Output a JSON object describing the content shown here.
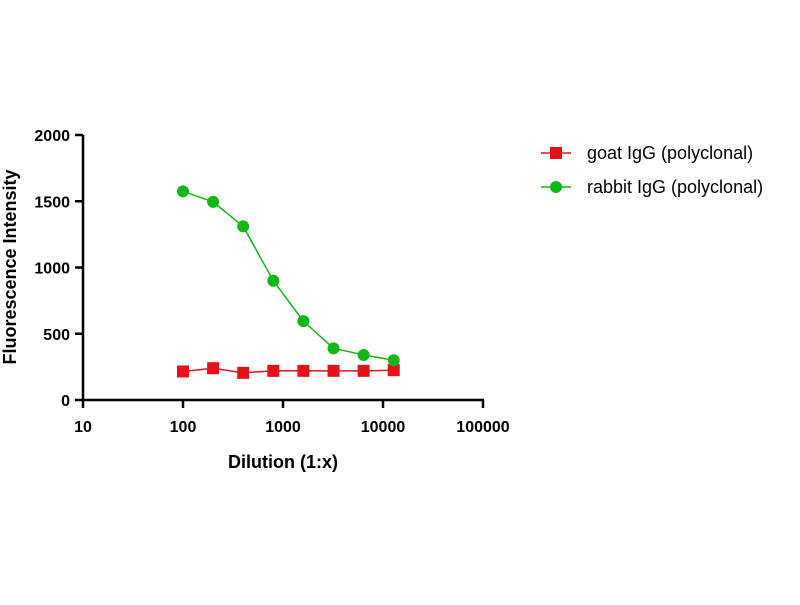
{
  "chart_data": {
    "type": "line",
    "title": "",
    "xlabel": "Dilution (1:x)",
    "ylabel": "Fluorescence Intensity",
    "xscale": "log",
    "xlim": [
      10,
      100000
    ],
    "ylim": [
      0,
      2000
    ],
    "xticks": [
      10,
      100,
      1000,
      10000,
      100000
    ],
    "xtick_labels": [
      "10",
      "100",
      "1000",
      "10000",
      "100000"
    ],
    "yticks": [
      0,
      500,
      1000,
      1500,
      2000
    ],
    "ytick_labels": [
      "0",
      "500",
      "1000",
      "1500",
      "2000"
    ],
    "grid": false,
    "legend_position": "right",
    "x": [
      100,
      200,
      400,
      800,
      1600,
      3200,
      6400,
      12800
    ],
    "series": [
      {
        "name": "goat IgG (polyclonal)",
        "color": "#e8111b",
        "marker": "square",
        "values": [
          215,
          240,
          205,
          220,
          220,
          220,
          220,
          225
        ]
      },
      {
        "name": "rabbit IgG (polyclonal)",
        "color": "#11b815",
        "marker": "circle",
        "values": [
          1575,
          1495,
          1310,
          900,
          595,
          390,
          340,
          300
        ]
      }
    ]
  }
}
